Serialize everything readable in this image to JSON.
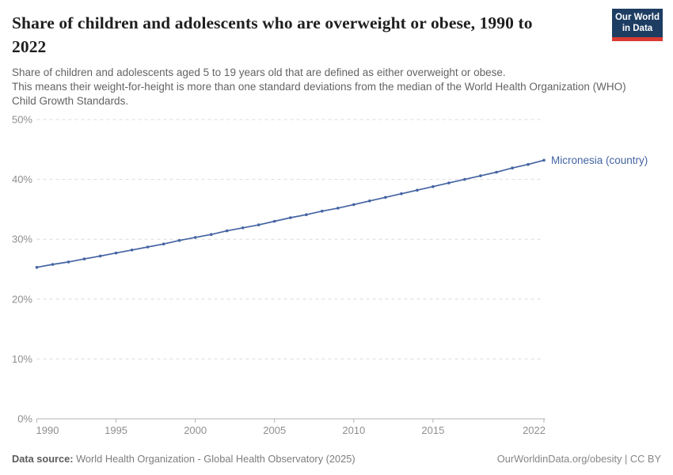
{
  "header": {
    "title": "Share of children and adolescents who are overweight or obese, 1990 to 2022",
    "subtitle_line1": "Share of children and adolescents aged 5 to 19 years old that are defined as either overweight or obese.",
    "subtitle_line2": "This means their weight-for-height is more than one standard deviations from the median of the World Health Organization (WHO) Child Growth Standards."
  },
  "logo": {
    "line1": "Our World",
    "line2": "in Data",
    "bg_color": "#1d3d63",
    "accent_color": "#d93b32"
  },
  "chart_data": {
    "type": "line",
    "title": "Share of children and adolescents who are overweight or obese, 1990 to 2022",
    "xlabel": "",
    "ylabel": "",
    "xlim": [
      1990,
      2022
    ],
    "ylim": [
      0,
      50
    ],
    "grid": "dashed-horizontal",
    "legend": "end-of-line-label",
    "yticks": [
      0,
      10,
      20,
      30,
      40,
      50
    ],
    "ytick_labels": [
      "0%",
      "10%",
      "20%",
      "30%",
      "40%",
      "50%"
    ],
    "xticks": [
      1990,
      1995,
      2000,
      2005,
      2010,
      2015,
      2022
    ],
    "xtick_labels": [
      "1990",
      "1995",
      "2000",
      "2005",
      "2010",
      "2015",
      "2022"
    ],
    "series": [
      {
        "name": "Micronesia (country)",
        "color": "#4464a3",
        "x": [
          1990,
          1991,
          1992,
          1993,
          1994,
          1995,
          1996,
          1997,
          1998,
          1999,
          2000,
          2001,
          2002,
          2003,
          2004,
          2005,
          2006,
          2007,
          2008,
          2009,
          2010,
          2011,
          2012,
          2013,
          2014,
          2015,
          2016,
          2017,
          2018,
          2019,
          2020,
          2021,
          2022
        ],
        "values": [
          25.3,
          25.8,
          26.2,
          26.7,
          27.2,
          27.7,
          28.2,
          28.7,
          29.2,
          29.8,
          30.3,
          30.8,
          31.4,
          31.9,
          32.4,
          33.0,
          33.6,
          34.1,
          34.7,
          35.2,
          35.8,
          36.4,
          37.0,
          37.6,
          38.2,
          38.8,
          39.4,
          40.0,
          40.6,
          41.2,
          41.9,
          42.5,
          43.2
        ]
      }
    ]
  },
  "colors": {
    "gridline": "#dcdcdc",
    "axis": "#b3b3b3",
    "tick_label": "#8f8f8f",
    "line": "#4464a3",
    "title": "#1f1f1f",
    "subtitle": "#636363"
  },
  "footer": {
    "source_label": "Data source:",
    "source_text": " World Health Organization - Global Health Observatory (2025)",
    "link_text": "OurWorldinData.org/obesity",
    "license_text": " | CC BY"
  }
}
